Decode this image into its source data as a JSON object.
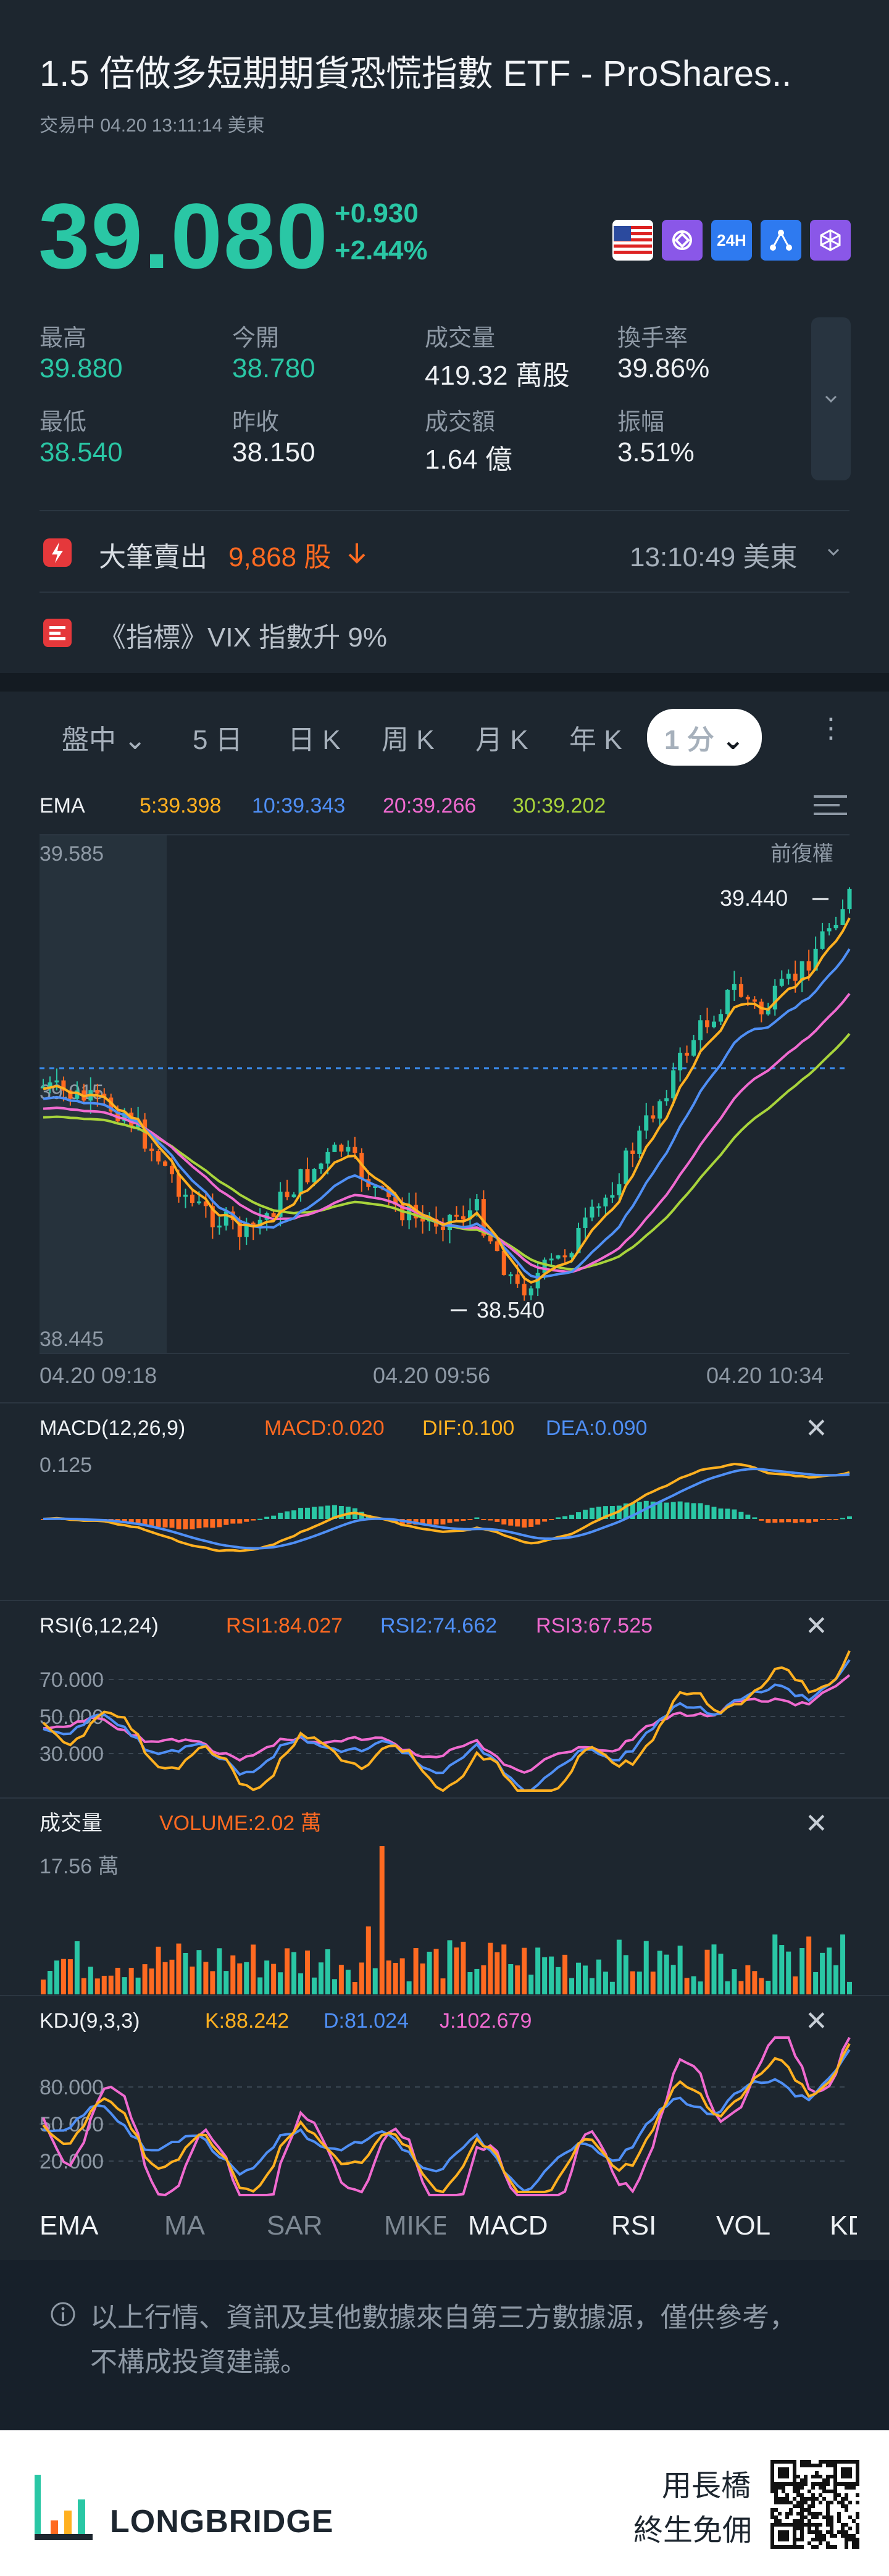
{
  "header": {
    "title": "1.5 倍做多短期期貨恐慌指數 ETF - ProShares..",
    "status_line": "交易中 04.20 13:11:14 美東",
    "price": "39.080",
    "change": "+0.930",
    "change_pct": "+2.44%",
    "badges": [
      {
        "icon": "us-flag-icon"
      },
      {
        "icon": "option-icon"
      },
      {
        "label": "24H"
      },
      {
        "icon": "network-icon"
      },
      {
        "icon": "cube-icon"
      }
    ]
  },
  "stats": [
    {
      "label": "最高",
      "value": "39.880",
      "color": "#2ac7a5"
    },
    {
      "label": "今開",
      "value": "38.780",
      "color": "#2ac7a5"
    },
    {
      "label": "成交量",
      "value": "419.32 萬股",
      "color": "#eef1f4"
    },
    {
      "label": "換手率",
      "value": "39.86%",
      "color": "#eef1f4"
    },
    {
      "label": "最低",
      "value": "38.540",
      "color": "#2ac7a5"
    },
    {
      "label": "昨收",
      "value": "38.150",
      "color": "#eef1f4"
    },
    {
      "label": "成交額",
      "value": "1.64 億",
      "color": "#eef1f4"
    },
    {
      "label": "振幅",
      "value": "3.51%",
      "color": "#eef1f4"
    }
  ],
  "big_trade": {
    "label": "大筆賣出",
    "amount": "9,868 股",
    "time": "13:10:49 美東"
  },
  "news": {
    "text": "《指標》VIX 指數升 9%"
  },
  "tabs": [
    "盤中",
    "5 日",
    "日 K",
    "周 K",
    "月 K",
    "年 K",
    "1 分"
  ],
  "ema": {
    "label": "EMA",
    "values": [
      {
        "text": "5:39.398",
        "color": "#ffb020"
      },
      {
        "text": "10:39.343",
        "color": "#4f8ff5"
      },
      {
        "text": "20:39.266",
        "color": "#f06ad0"
      },
      {
        "text": "30:39.202",
        "color": "#a8d43b"
      }
    ],
    "top": "39.585",
    "bottom": "38.445",
    "mid": "39.015",
    "adjust": "前復權",
    "hi_mark": "39.440",
    "lo_mark": "38.540",
    "times": [
      "04.20 09:18",
      "04.20 09:56",
      "04.20 10:34"
    ]
  },
  "macd": {
    "label": "MACD(12,26,9)",
    "v1": "MACD:0.020",
    "v2": "DIF:0.100",
    "v3": "DEA:0.090",
    "scale": "0.125"
  },
  "rsi": {
    "label": "RSI(6,12,24)",
    "v1": "RSI1:84.027",
    "v2": "RSI2:74.662",
    "v3": "RSI3:67.525",
    "levels": [
      "70.000",
      "50.000",
      "30.000"
    ]
  },
  "vol": {
    "label": "成交量",
    "v1": "VOLUME:2.02 萬",
    "scale": "17.56 萬"
  },
  "kdj": {
    "label": "KDJ(9,3,3)",
    "v1": "K:88.242",
    "v2": "D:81.024",
    "v3": "J:102.679",
    "levels": [
      "80.000",
      "50.000",
      "20.000"
    ]
  },
  "indicator_tabs": [
    "EMA",
    "MA",
    "SAR",
    "MIKE",
    "MACD",
    "RSI",
    "VOL",
    "KDJ"
  ],
  "disclaimer": "以上行情、資訊及其他數據來自第三方數據源，僅供參考，不構成投資建議。",
  "footer": {
    "brand": "LONGBRIDGE",
    "slogan1": "用長橋",
    "slogan2": "終生免佣"
  }
}
